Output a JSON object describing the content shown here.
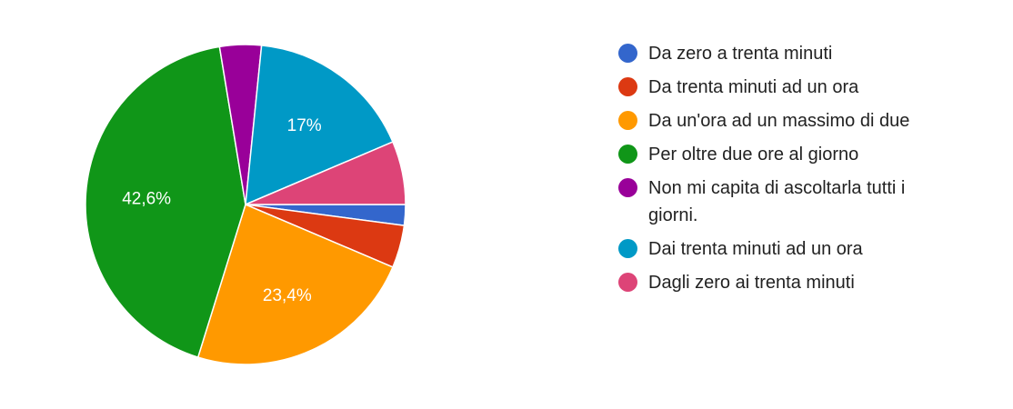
{
  "chart_data": {
    "type": "pie",
    "slices": [
      {
        "name": "Da zero a trenta minuti",
        "value": 2.1,
        "color": "#3366cc",
        "label": ""
      },
      {
        "name": "Da trenta minuti ad un ora",
        "value": 4.3,
        "color": "#dc3912",
        "label": ""
      },
      {
        "name": "Da un'ora ad un massimo di due",
        "value": 23.4,
        "color": "#ff9900",
        "label": "23,4%"
      },
      {
        "name": "Per oltre due ore al giorno",
        "value": 42.6,
        "color": "#109618",
        "label": "42,6%"
      },
      {
        "name": "Non mi capita di ascoltarla tutti i giorni.",
        "value": 4.2,
        "color": "#990099",
        "label": ""
      },
      {
        "name": "Dai trenta minuti ad un ora",
        "value": 17,
        "color": "#0099c6",
        "label": "17%"
      },
      {
        "name": "Dagli zero ai trenta minuti",
        "value": 6.4,
        "color": "#dd4477",
        "label": ""
      }
    ],
    "legend_position": "right",
    "start": "3 o'clock, clockwise"
  }
}
